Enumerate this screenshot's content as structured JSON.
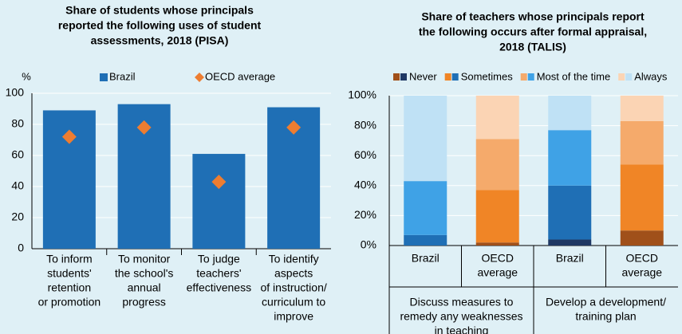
{
  "chart_data": [
    {
      "type": "bar",
      "title": [
        "Share of students whose principals",
        "reported the following uses of student",
        "assessments, 2018 (PISA)"
      ],
      "ylabel": "%",
      "categories": [
        [
          "To inform",
          "students'",
          "retention",
          "or promotion"
        ],
        [
          "To monitor",
          "the school's",
          "annual",
          "progress"
        ],
        [
          "To judge",
          "teachers'",
          "effectiveness"
        ],
        [
          "To identify",
          "aspects",
          "of instruction/",
          "curriculum to",
          "improve"
        ]
      ],
      "series": [
        {
          "name": "Brazil",
          "color": "#1f6fb5",
          "marker": "bar",
          "values": [
            89,
            93,
            61,
            91
          ]
        },
        {
          "name": "OECD average",
          "color": "#ed7d31",
          "marker": "diamond",
          "values": [
            72,
            78,
            43,
            78
          ]
        }
      ],
      "ylim": [
        0,
        100
      ],
      "yticks": [
        0,
        20,
        40,
        60,
        80,
        100
      ]
    },
    {
      "type": "stacked_bar",
      "title": [
        "Share of teachers whose principals report",
        "the following occurs after formal appraisal,",
        "2018 (TALIS)"
      ],
      "categories": [
        [
          "Brazil"
        ],
        [
          "OECD",
          "average"
        ],
        [
          "Brazil"
        ],
        [
          "OECD",
          "average"
        ]
      ],
      "groups": [
        [
          "Discuss measures to",
          "remedy any weaknesses",
          "in teaching"
        ],
        [
          "Develop a development/",
          "training plan"
        ]
      ],
      "series": [
        {
          "name": "Never",
          "colors": [
            "#1f3864",
            "#a0501a",
            "#1f3864",
            "#a0501a"
          ],
          "values": [
            0,
            2,
            4,
            10
          ]
        },
        {
          "name": "Sometimes",
          "colors": [
            "#1f6fb5",
            "#f08526",
            "#1f6fb5",
            "#f08526"
          ],
          "values": [
            7,
            35,
            36,
            44
          ]
        },
        {
          "name": "Most of the time",
          "colors": [
            "#3fa2e6",
            "#f5aa6b",
            "#3fa2e6",
            "#f5aa6b"
          ],
          "values": [
            36,
            34,
            37,
            29
          ]
        },
        {
          "name": "Always",
          "colors": [
            "#bfe1f5",
            "#fbd4b4",
            "#bfe1f5",
            "#fbd4b4"
          ],
          "values": [
            57,
            29,
            23,
            17
          ]
        }
      ],
      "ylim": [
        0,
        100
      ],
      "yticks": [
        {
          "value": 0,
          "label": "0%"
        },
        {
          "value": 20,
          "label": "20%"
        },
        {
          "value": 40,
          "label": "40%"
        },
        {
          "value": 60,
          "label": "60%"
        },
        {
          "value": 80,
          "label": "80%"
        },
        {
          "value": 100,
          "label": "100%"
        }
      ]
    }
  ]
}
